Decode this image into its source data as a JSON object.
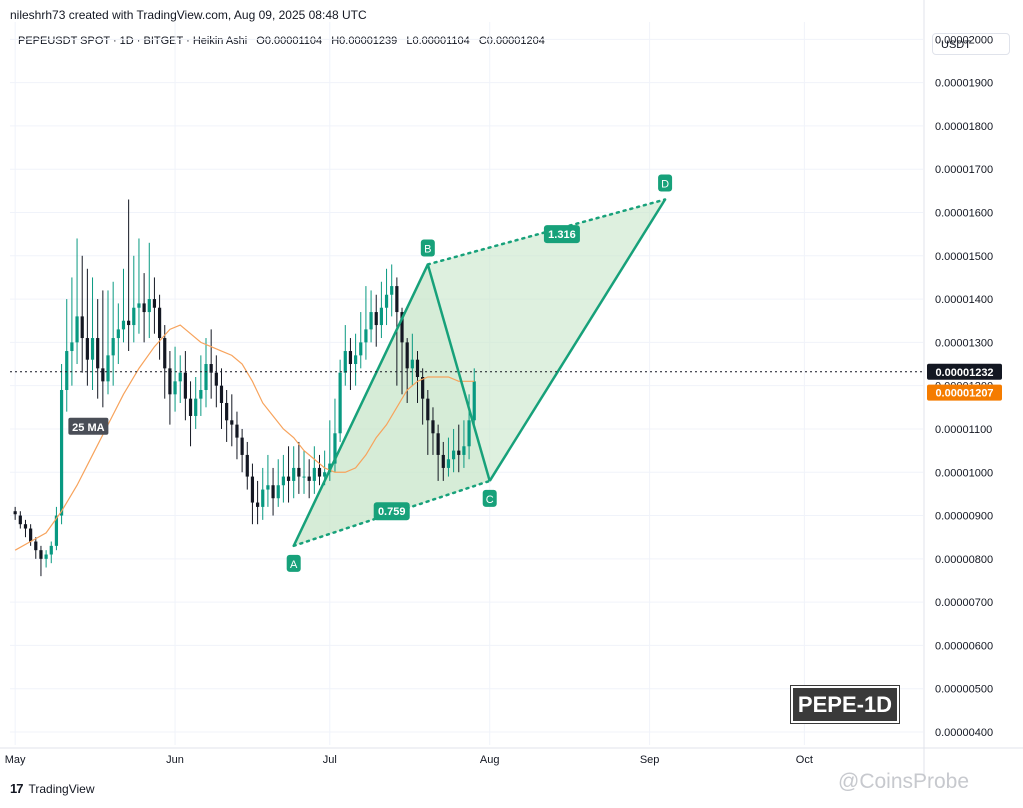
{
  "header": {
    "attribution": "nileshrh73 created with TradingView.com, Aug 09, 2025 08:48 UTC",
    "symbol_line": "PEPEUSDT SPOT · 1D · BITGET · Heikin Ashi",
    "ohlc": {
      "o": "O0.00001104",
      "h": "H0.00001239",
      "l": "L0.00001104",
      "c": "C0.00001204"
    }
  },
  "currency": "USDT",
  "footer": {
    "logo_text": "TradingView",
    "watermark": "@CoinsProbe"
  },
  "badge": "PEPE-1D",
  "colors": {
    "up": "#089981",
    "down": "#131722",
    "ma": "#f7a35c",
    "pattern": "#17a17a",
    "fill": "#c8e6c9"
  },
  "chart_data": {
    "type": "candlestick",
    "ylim": [
      3.7e-06,
      2.04e-05
    ],
    "y_ticks": [
      "0.00000400",
      "0.00000500",
      "0.00000600",
      "0.00000700",
      "0.00000800",
      "0.00000900",
      "0.00001000",
      "0.00001100",
      "0.00001200",
      "0.00001300",
      "0.00001400",
      "0.00001500",
      "0.00001600",
      "0.00001700",
      "0.00001800",
      "0.00001900",
      "0.00002000"
    ],
    "x_ticks": [
      {
        "label": "May",
        "day": 0
      },
      {
        "label": "Jun",
        "day": 31
      },
      {
        "label": "Jul",
        "day": 61
      },
      {
        "label": "Aug",
        "day": 92
      },
      {
        "label": "Sep",
        "day": 123
      },
      {
        "label": "Oct",
        "day": 153
      }
    ],
    "x_range_days": [
      -1,
      176
    ],
    "last_price": {
      "value": 1.232e-05,
      "label": "0.00001232"
    },
    "ma_value": {
      "value": 1.207e-05,
      "label": "0.00001207"
    },
    "ma_label": "25 MA",
    "candles": [
      [
        9.1e-06,
        9.03e-06,
        9.2e-06,
        8.9e-06
      ],
      [
        9e-06,
        8.8e-06,
        9.1e-06,
        8.7e-06
      ],
      [
        8.8e-06,
        8.7e-06,
        8.9e-06,
        8.5e-06
      ],
      [
        8.7e-06,
        8.4e-06,
        8.8e-06,
        8.3e-06
      ],
      [
        8.4e-06,
        8.2e-06,
        8.5e-06,
        8e-06
      ],
      [
        8.2e-06,
        8e-06,
        8.3e-06,
        7.6e-06
      ],
      [
        8e-06,
        8.1e-06,
        8.2e-06,
        7.8e-06
      ],
      [
        8.1e-06,
        8.3e-06,
        8.4e-06,
        7.9e-06
      ],
      [
        8.3e-06,
        9e-06,
        9.2e-06,
        8.2e-06
      ],
      [
        9e-06,
        1.19e-05,
        1.25e-05,
        8.8e-06
      ],
      [
        1.19e-05,
        1.28e-05,
        1.4e-05,
        1.14e-05
      ],
      [
        1.28e-05,
        1.3e-05,
        1.45e-05,
        1.2e-05
      ],
      [
        1.3e-05,
        1.36e-05,
        1.54e-05,
        1.25e-05
      ],
      [
        1.36e-05,
        1.31e-05,
        1.5e-05,
        1.23e-05
      ],
      [
        1.31e-05,
        1.26e-05,
        1.47e-05,
        1.2e-05
      ],
      [
        1.26e-05,
        1.31e-05,
        1.45e-05,
        1.19e-05
      ],
      [
        1.31e-05,
        1.24e-05,
        1.4e-05,
        1.17e-05
      ],
      [
        1.24e-05,
        1.21e-05,
        1.42e-05,
        1.15e-05
      ],
      [
        1.21e-05,
        1.27e-05,
        1.42e-05,
        1.18e-05
      ],
      [
        1.27e-05,
        1.31e-05,
        1.44e-05,
        1.2e-05
      ],
      [
        1.31e-05,
        1.33e-05,
        1.39e-05,
        1.25e-05
      ],
      [
        1.33e-05,
        1.35e-05,
        1.47e-05,
        1.3e-05
      ],
      [
        1.35e-05,
        1.34e-05,
        1.63e-05,
        1.28e-05
      ],
      [
        1.34e-05,
        1.38e-05,
        1.5e-05,
        1.3e-05
      ],
      [
        1.38e-05,
        1.39e-05,
        1.54e-05,
        1.32e-05
      ],
      [
        1.39e-05,
        1.37e-05,
        1.46e-05,
        1.3e-05
      ],
      [
        1.37e-05,
        1.4e-05,
        1.53e-05,
        1.31e-05
      ],
      [
        1.4e-05,
        1.38e-05,
        1.45e-05,
        1.32e-05
      ],
      [
        1.38e-05,
        1.31e-05,
        1.41e-05,
        1.26e-05
      ],
      [
        1.31e-05,
        1.24e-05,
        1.34e-05,
        1.17e-05
      ],
      [
        1.24e-05,
        1.18e-05,
        1.28e-05,
        1.11e-05
      ],
      [
        1.18e-05,
        1.21e-05,
        1.29e-05,
        1.14e-05
      ],
      [
        1.21e-05,
        1.23e-05,
        1.27e-05,
        1.16e-05
      ],
      [
        1.23e-05,
        1.17e-05,
        1.28e-05,
        1.12e-05
      ],
      [
        1.17e-05,
        1.13e-05,
        1.21e-05,
        1.06e-05
      ],
      [
        1.13e-05,
        1.17e-05,
        1.22e-05,
        1.1e-05
      ],
      [
        1.17e-05,
        1.19e-05,
        1.27e-05,
        1.13e-05
      ],
      [
        1.19e-05,
        1.25e-05,
        1.31e-05,
        1.15e-05
      ],
      [
        1.25e-05,
        1.23e-05,
        1.33e-05,
        1.17e-05
      ],
      [
        1.23e-05,
        1.2e-05,
        1.27e-05,
        1.15e-05
      ],
      [
        1.2e-05,
        1.16e-05,
        1.24e-05,
        1.1e-05
      ],
      [
        1.16e-05,
        1.12e-05,
        1.19e-05,
        1.07e-05
      ],
      [
        1.12e-05,
        1.11e-05,
        1.18e-05,
        1.06e-05
      ],
      [
        1.11e-05,
        1.08e-05,
        1.14e-05,
        1.03e-05
      ],
      [
        1.08e-05,
        1.04e-05,
        1.1e-05,
        1e-05
      ],
      [
        1.04e-05,
        9.9e-06,
        1.07e-05,
        9.6e-06
      ],
      [
        9.9e-06,
        9.3e-06,
        1.02e-05,
        8.8e-06
      ],
      [
        9.3e-06,
        9.2e-06,
        9.8e-06,
        8.8e-06
      ],
      [
        9.2e-06,
        9.6e-06,
        1.01e-05,
        8.9e-06
      ],
      [
        9.6e-06,
        9.7e-06,
        1.04e-05,
        9.2e-06
      ],
      [
        9.7e-06,
        9.4e-06,
        1.01e-05,
        9e-06
      ],
      [
        9.4e-06,
        9.7e-06,
        1.03e-05,
        9.2e-06
      ],
      [
        9.7e-06,
        9.9e-06,
        1.04e-05,
        9.3e-06
      ],
      [
        9.9e-06,
        9.8e-06,
        1.06e-05,
        9.3e-06
      ],
      [
        9.8e-06,
        1.01e-05,
        1.06e-05,
        9.4e-06
      ],
      [
        1.01e-05,
        9.9e-06,
        1.07e-05,
        9.5e-06
      ],
      [
        9.9e-06,
        9.9e-06,
        1.05e-05,
        9.5e-06
      ],
      [
        9.9e-06,
        9.8e-06,
        1.03e-05,
        9.4e-06
      ],
      [
        9.8e-06,
        1.01e-05,
        1.06e-05,
        9.5e-06
      ],
      [
        1.01e-05,
        9.9e-06,
        1.04e-05,
        9.7e-06
      ],
      [
        9.9e-06,
        1e-05,
        1.05e-05,
        9.7e-06
      ],
      [
        1e-05,
        1.02e-05,
        1.12e-05,
        9.8e-06
      ],
      [
        1.02e-05,
        1.09e-05,
        1.17e-05,
        1e-05
      ],
      [
        1.09e-05,
        1.23e-05,
        1.26e-05,
        1.07e-05
      ],
      [
        1.23e-05,
        1.28e-05,
        1.34e-05,
        1.2e-05
      ],
      [
        1.28e-05,
        1.25e-05,
        1.31e-05,
        1.19e-05
      ],
      [
        1.25e-05,
        1.27e-05,
        1.32e-05,
        1.2e-05
      ],
      [
        1.27e-05,
        1.3e-05,
        1.37e-05,
        1.24e-05
      ],
      [
        1.3e-05,
        1.33e-05,
        1.43e-05,
        1.26e-05
      ],
      [
        1.33e-05,
        1.37e-05,
        1.42e-05,
        1.3e-05
      ],
      [
        1.37e-05,
        1.34e-05,
        1.41e-05,
        1.29e-05
      ],
      [
        1.34e-05,
        1.38e-05,
        1.44e-05,
        1.31e-05
      ],
      [
        1.38e-05,
        1.41e-05,
        1.47e-05,
        1.34e-05
      ],
      [
        1.41e-05,
        1.43e-05,
        1.48e-05,
        1.36e-05
      ],
      [
        1.43e-05,
        1.37e-05,
        1.45e-05,
        1.2e-05
      ],
      [
        1.37e-05,
        1.3e-05,
        1.38e-05,
        1.18e-05
      ],
      [
        1.3e-05,
        1.24e-05,
        1.31e-05,
        1.16e-05
      ],
      [
        1.24e-05,
        1.26e-05,
        1.32e-05,
        1.2e-05
      ],
      [
        1.26e-05,
        1.22e-05,
        1.28e-05,
        1.16e-05
      ],
      [
        1.22e-05,
        1.17e-05,
        1.24e-05,
        1.11e-05
      ],
      [
        1.17e-05,
        1.12e-05,
        1.19e-05,
        1.04e-05
      ],
      [
        1.12e-05,
        1.09e-05,
        1.15e-05,
        1.04e-05
      ],
      [
        1.09e-05,
        1.04e-05,
        1.11e-05,
        9.8e-06
      ],
      [
        1.04e-05,
        1.01e-05,
        1.07e-05,
        9.8e-06
      ],
      [
        1.01e-05,
        1.03e-05,
        1.08e-05,
        9.9e-06
      ],
      [
        1.03e-05,
        1.05e-05,
        1.1e-05,
        1e-05
      ],
      [
        1.05e-05,
        1.04e-05,
        1.11e-05,
        1e-05
      ],
      [
        1.04e-05,
        1.06e-05,
        1.12e-05,
        1.01e-05
      ],
      [
        1.06e-05,
        1.12e-05,
        1.18e-05,
        1.03e-05
      ],
      [
        1.12e-05,
        1.21e-05,
        1.24e-05,
        1.1e-05
      ]
    ],
    "ma": [
      [
        0,
        8.2e-06
      ],
      [
        3,
        8.4e-06
      ],
      [
        6,
        8.6e-06
      ],
      [
        9,
        9.1e-06
      ],
      [
        12,
        9.7e-06
      ],
      [
        15,
        1.04e-05
      ],
      [
        18,
        1.11e-05
      ],
      [
        21,
        1.18e-05
      ],
      [
        24,
        1.24e-05
      ],
      [
        27,
        1.29e-05
      ],
      [
        30,
        1.33e-05
      ],
      [
        32,
        1.34e-05
      ],
      [
        34,
        1.32e-05
      ],
      [
        36,
        1.3e-05
      ],
      [
        38,
        1.29e-05
      ],
      [
        40,
        1.28e-05
      ],
      [
        42,
        1.27e-05
      ],
      [
        44,
        1.25e-05
      ],
      [
        46,
        1.21e-05
      ],
      [
        48,
        1.16e-05
      ],
      [
        50,
        1.13e-05
      ],
      [
        52,
        1.1e-05
      ],
      [
        54,
        1.08e-05
      ],
      [
        56,
        1.05e-05
      ],
      [
        58,
        1.03e-05
      ],
      [
        60,
        1.01e-05
      ],
      [
        62,
        1e-05
      ],
      [
        64,
        1e-05
      ],
      [
        66,
        1.01e-05
      ],
      [
        68,
        1.04e-05
      ],
      [
        70,
        1.08e-05
      ],
      [
        72,
        1.11e-05
      ],
      [
        74,
        1.15e-05
      ],
      [
        76,
        1.19e-05
      ],
      [
        78,
        1.21e-05
      ],
      [
        80,
        1.22e-05
      ],
      [
        82,
        1.22e-05
      ],
      [
        84,
        1.22e-05
      ],
      [
        86,
        1.21e-05
      ],
      [
        88,
        1.21e-05
      ],
      [
        89,
        1.21e-05
      ]
    ],
    "pattern": {
      "points": [
        {
          "label": "A",
          "day": 54,
          "value": 8.3e-06
        },
        {
          "label": "B",
          "day": 80,
          "value": 1.48e-05
        },
        {
          "label": "C",
          "day": 92,
          "value": 9.8e-06
        },
        {
          "label": "D",
          "day": 126,
          "value": 1.63e-05
        }
      ],
      "ratios": [
        {
          "label": "0.759",
          "day": 73,
          "value": 9.1e-06
        },
        {
          "label": "1.316",
          "day": 106,
          "value": 1.55e-05
        }
      ]
    }
  }
}
